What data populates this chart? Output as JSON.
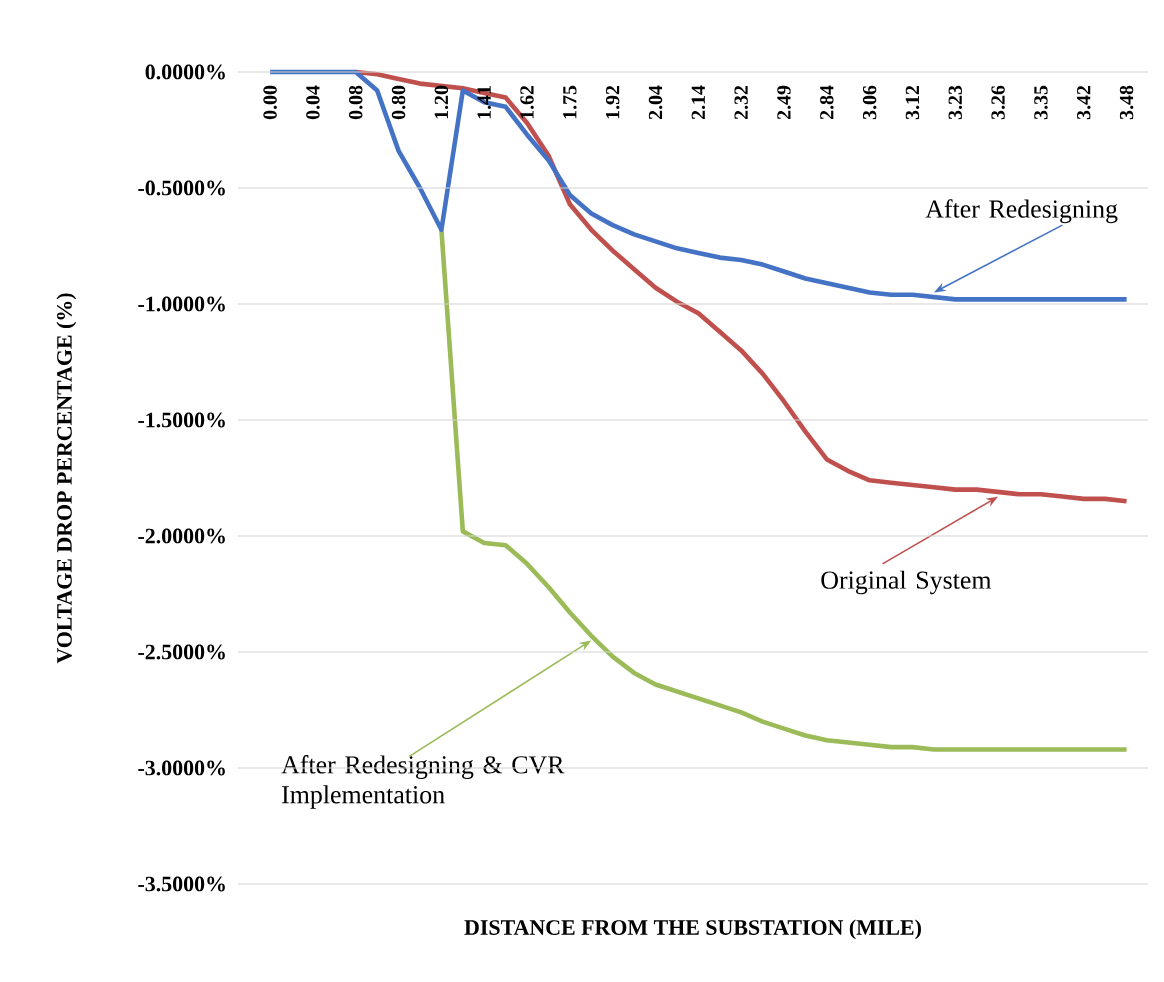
{
  "chart_data": {
    "type": "line",
    "xlabel": "DISTANCE FROM THE SUBSTATION (MILE)",
    "ylabel": "VOLTAGE DROP PERCENTAGE (%)",
    "categories": [
      "0.00",
      null,
      "0.04",
      null,
      "0.08",
      null,
      "0.80",
      null,
      "1.20",
      null,
      "1.41",
      null,
      "1.62",
      null,
      "1.75",
      null,
      "1.92",
      null,
      "2.04",
      null,
      "2.14",
      null,
      "2.32",
      null,
      "2.49",
      null,
      "2.84",
      null,
      "3.06",
      null,
      "3.12",
      null,
      "3.23",
      null,
      "3.26",
      null,
      "3.35",
      null,
      "3.42",
      null,
      "3.48"
    ],
    "series": [
      {
        "name": "After Redesigning",
        "color": "#4472c4",
        "values": [
          0,
          0,
          0,
          0,
          0,
          -0.08,
          -0.34,
          -0.5,
          -0.68,
          -0.08,
          -0.13,
          -0.15,
          -0.27,
          -0.38,
          -0.53,
          -0.61,
          -0.66,
          -0.7,
          -0.73,
          -0.76,
          -0.78,
          -0.8,
          -0.81,
          -0.83,
          -0.86,
          -0.89,
          -0.91,
          -0.93,
          -0.95,
          -0.96,
          -0.96,
          -0.97,
          -0.98,
          -0.98,
          -0.98,
          -0.98,
          -0.98,
          -0.98,
          -0.98,
          -0.98,
          -0.98
        ]
      },
      {
        "name": "Original System",
        "color": "#c0504d",
        "values": [
          null,
          null,
          null,
          null,
          0,
          -0.01,
          -0.03,
          -0.05,
          -0.06,
          -0.07,
          -0.09,
          -0.11,
          -0.22,
          -0.36,
          -0.57,
          -0.68,
          -0.77,
          -0.85,
          -0.93,
          -0.99,
          -1.04,
          -1.12,
          -1.2,
          -1.3,
          -1.42,
          -1.55,
          -1.67,
          -1.72,
          -1.76,
          -1.77,
          -1.78,
          -1.79,
          -1.8,
          -1.8,
          -1.81,
          -1.82,
          -1.82,
          -1.83,
          -1.84,
          -1.84,
          -1.85
        ]
      },
      {
        "name": "After Redesigning & CVR Implementation",
        "color": "#9bbb59",
        "values": [
          null,
          null,
          null,
          null,
          null,
          null,
          null,
          null,
          -0.68,
          -1.98,
          -2.03,
          -2.04,
          -2.12,
          -2.22,
          -2.33,
          -2.43,
          -2.52,
          -2.59,
          -2.64,
          -2.67,
          -2.7,
          -2.73,
          -2.76,
          -2.8,
          -2.83,
          -2.86,
          -2.88,
          -2.89,
          -2.9,
          -2.91,
          -2.91,
          -2.92,
          -2.92,
          -2.92,
          -2.92,
          -2.92,
          -2.92,
          -2.92,
          -2.92,
          -2.92,
          -2.92
        ]
      }
    ],
    "ylim": [
      -3.5,
      0
    ],
    "yticks": [
      {
        "value": 0,
        "label": "0.0000%"
      },
      {
        "value": -0.5,
        "label": "-0.5000%"
      },
      {
        "value": -1,
        "label": "-1.0000%"
      },
      {
        "value": -1.5,
        "label": "-1.5000%"
      },
      {
        "value": -2,
        "label": "-2.0000%"
      },
      {
        "value": -2.5,
        "label": "-2.5000%"
      },
      {
        "value": -3,
        "label": "-3.0000%"
      },
      {
        "value": -3.5,
        "label": "-3.5000%"
      }
    ],
    "grid": "y"
  }
}
